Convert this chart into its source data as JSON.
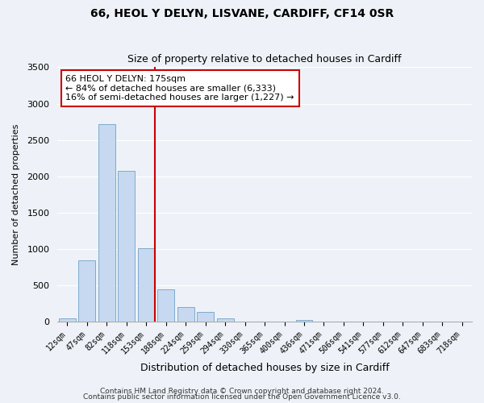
{
  "title": "66, HEOL Y DELYN, LISVANE, CARDIFF, CF14 0SR",
  "subtitle": "Size of property relative to detached houses in Cardiff",
  "xlabel": "Distribution of detached houses by size in Cardiff",
  "ylabel": "Number of detached properties",
  "bar_labels": [
    "12sqm",
    "47sqm",
    "82sqm",
    "118sqm",
    "153sqm",
    "188sqm",
    "224sqm",
    "259sqm",
    "294sqm",
    "330sqm",
    "365sqm",
    "400sqm",
    "436sqm",
    "471sqm",
    "506sqm",
    "541sqm",
    "577sqm",
    "612sqm",
    "647sqm",
    "683sqm",
    "718sqm"
  ],
  "bar_values": [
    50,
    850,
    2720,
    2080,
    1010,
    450,
    200,
    140,
    50,
    0,
    0,
    0,
    25,
    0,
    0,
    0,
    0,
    0,
    0,
    0,
    0
  ],
  "bar_color": "#c6d9f0",
  "bar_edge_color": "#7FAACC",
  "property_line_color": "#cc0000",
  "annotation_line1": "66 HEOL Y DELYN: 175sqm",
  "annotation_line2": "← 84% of detached houses are smaller (6,333)",
  "annotation_line3": "16% of semi-detached houses are larger (1,227) →",
  "annotation_box_color": "#ffffff",
  "annotation_box_edge": "#cc0000",
  "ylim": [
    0,
    3500
  ],
  "yticks": [
    0,
    500,
    1000,
    1500,
    2000,
    2500,
    3000,
    3500
  ],
  "footer1": "Contains HM Land Registry data © Crown copyright and database right 2024.",
  "footer2": "Contains public sector information licensed under the Open Government Licence v3.0.",
  "background_color": "#eef2f8",
  "grid_color": "#ffffff",
  "title_fontsize": 10,
  "subtitle_fontsize": 9,
  "ylabel_fontsize": 8,
  "xlabel_fontsize": 9,
  "tick_fontsize": 7,
  "annotation_fontsize": 8,
  "footer_fontsize": 6.5
}
